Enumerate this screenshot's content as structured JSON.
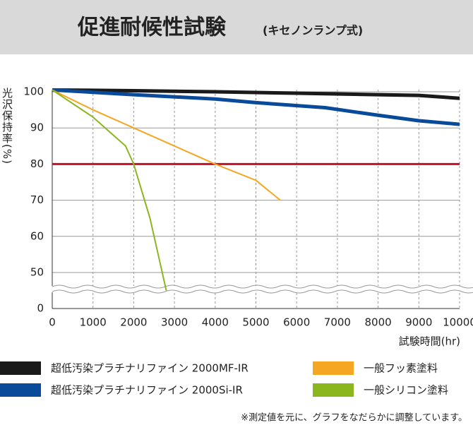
{
  "chart_data": {
    "type": "line",
    "title": "促進耐候性試験",
    "subtitle": "(キセノンランプ式)",
    "y_label": "光沢保持率(%)",
    "x_label": "試験時間(hr)",
    "note": "※測定値を元に、グラフをなだらかに調整しています。",
    "xlim": [
      0,
      10000
    ],
    "xticks": [
      0,
      1000,
      2000,
      3000,
      4000,
      5000,
      6000,
      7000,
      8000,
      9000,
      10000
    ],
    "ylim": [
      0,
      100
    ],
    "yticks": [
      0,
      50,
      60,
      70,
      80,
      90,
      100
    ],
    "axis_break": true,
    "grid": true,
    "reference_line": {
      "value": 80,
      "color": "#c0102a"
    },
    "series": [
      {
        "name": "超低汚染プラチナリファイン 2000MF-IR",
        "color": "#1a1a1a",
        "x": [
          0,
          2000,
          4000,
          6000,
          8000,
          9000,
          10000
        ],
        "values": [
          100.5,
          100.3,
          100,
          99.6,
          99.2,
          99,
          98.2
        ]
      },
      {
        "name": "超低汚染プラチナリファイン 2000Si-IR",
        "color": "#0a4a9a",
        "x": [
          0,
          2000,
          4000,
          5000,
          6700,
          8000,
          9000,
          10000
        ],
        "values": [
          100.5,
          99.2,
          98,
          97,
          95.6,
          93.5,
          92,
          91
        ]
      },
      {
        "name": "一般フッ素塗料",
        "color": "#f5a623",
        "x": [
          0,
          1000,
          2000,
          3000,
          4000,
          5000,
          5600
        ],
        "values": [
          100.5,
          95,
          90,
          85,
          80,
          75.5,
          70
        ]
      },
      {
        "name": "一般シリコン塗料",
        "color": "#8cb61e",
        "x": [
          0,
          1000,
          1500,
          1800,
          2000,
          2400,
          2800
        ],
        "values": [
          100.5,
          93,
          88,
          85,
          80,
          65,
          45
        ]
      }
    ]
  }
}
